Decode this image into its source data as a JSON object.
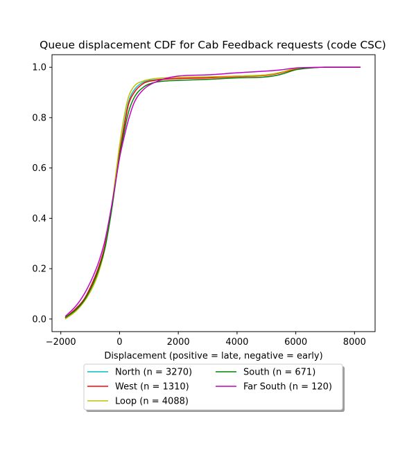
{
  "chart_data": {
    "type": "line",
    "title": "Queue displacement CDF for Cab Feedback  requests (code CSC)",
    "xlabel": "Displacement (positive = late, negative = early)",
    "ylabel": "",
    "xlim": [
      -2300,
      8700
    ],
    "ylim": [
      -0.05,
      1.05
    ],
    "xticks": [
      -2000,
      0,
      2000,
      4000,
      6000,
      8000
    ],
    "xtick_labels": [
      "−2000",
      "0",
      "2000",
      "4000",
      "6000",
      "8000"
    ],
    "yticks": [
      0.0,
      0.2,
      0.4,
      0.6,
      0.8,
      1.0
    ],
    "ytick_labels": [
      "0.0",
      "0.2",
      "0.4",
      "0.6",
      "0.8",
      "1.0"
    ],
    "grid": false,
    "legend_position": "bottom-center",
    "series": [
      {
        "name": "North (n = 3270)",
        "color": "#00bfbf",
        "x": [
          -1850,
          -1500,
          -1200,
          -900,
          -700,
          -500,
          -300,
          -100,
          0,
          150,
          300,
          500,
          800,
          1200,
          2000,
          3000,
          4000,
          5000,
          5500,
          6000,
          6500,
          7000,
          8200
        ],
        "y": [
          0.005,
          0.04,
          0.08,
          0.15,
          0.21,
          0.29,
          0.42,
          0.58,
          0.66,
          0.77,
          0.86,
          0.91,
          0.94,
          0.95,
          0.955,
          0.96,
          0.965,
          0.97,
          0.98,
          0.995,
          0.998,
          1.0,
          1.0
        ]
      },
      {
        "name": "West (n = 1310)",
        "color": "#ff0000",
        "x": [
          -1850,
          -1500,
          -1200,
          -900,
          -700,
          -500,
          -300,
          -100,
          0,
          150,
          300,
          500,
          800,
          1200,
          2000,
          3000,
          4000,
          5000,
          5500,
          6000,
          6500,
          7000,
          8200
        ],
        "y": [
          0.005,
          0.04,
          0.08,
          0.15,
          0.21,
          0.29,
          0.42,
          0.58,
          0.66,
          0.76,
          0.85,
          0.9,
          0.935,
          0.948,
          0.955,
          0.958,
          0.963,
          0.968,
          0.978,
          0.993,
          0.998,
          1.0,
          1.0
        ]
      },
      {
        "name": "Loop (n = 4088)",
        "color": "#bfbf00",
        "x": [
          -1850,
          -1500,
          -1200,
          -900,
          -700,
          -500,
          -300,
          -100,
          0,
          150,
          300,
          500,
          800,
          1200,
          2000,
          3000,
          4000,
          5000,
          5500,
          6000,
          6500,
          7000,
          8200
        ],
        "y": [
          0.0,
          0.03,
          0.07,
          0.13,
          0.19,
          0.28,
          0.42,
          0.6,
          0.69,
          0.8,
          0.88,
          0.925,
          0.945,
          0.955,
          0.96,
          0.962,
          0.965,
          0.97,
          0.98,
          0.995,
          0.998,
          1.0,
          1.0
        ]
      },
      {
        "name": "South (n = 671)",
        "color": "#008000",
        "x": [
          -1850,
          -1500,
          -1200,
          -900,
          -700,
          -500,
          -300,
          -100,
          0,
          150,
          300,
          500,
          800,
          1200,
          2000,
          3000,
          4000,
          5000,
          5500,
          6000,
          6500,
          7000,
          8200
        ],
        "y": [
          0.005,
          0.035,
          0.075,
          0.14,
          0.2,
          0.28,
          0.41,
          0.57,
          0.65,
          0.74,
          0.82,
          0.88,
          0.92,
          0.94,
          0.948,
          0.952,
          0.958,
          0.962,
          0.972,
          0.99,
          0.997,
          1.0,
          1.0
        ]
      },
      {
        "name": "Far South (n = 120)",
        "color": "#bf00bf",
        "x": [
          -1850,
          -1500,
          -1200,
          -900,
          -700,
          -500,
          -300,
          -100,
          0,
          150,
          300,
          500,
          800,
          1200,
          2000,
          3000,
          4000,
          5000,
          5500,
          6000,
          6500,
          7000,
          8200
        ],
        "y": [
          0.01,
          0.05,
          0.1,
          0.17,
          0.23,
          0.31,
          0.43,
          0.57,
          0.64,
          0.72,
          0.79,
          0.86,
          0.91,
          0.94,
          0.965,
          0.97,
          0.978,
          0.985,
          0.99,
          0.997,
          0.999,
          1.0,
          1.0
        ]
      }
    ]
  }
}
